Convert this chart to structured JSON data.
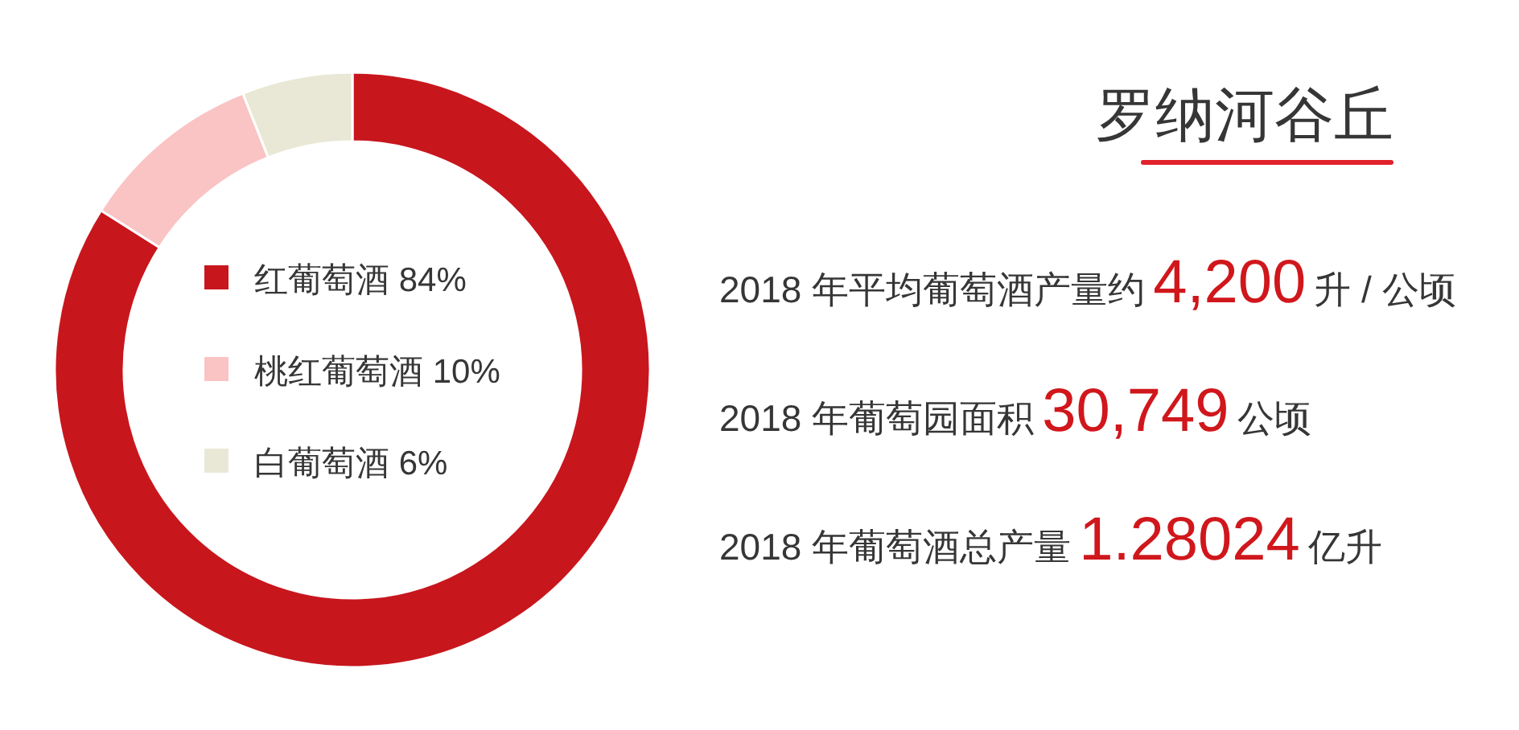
{
  "chart_data": [
    {
      "type": "donut",
      "categories": [
        "红葡萄酒",
        "桃红葡萄酒",
        "白葡萄酒"
      ],
      "values": [
        84,
        10,
        6
      ],
      "value_labels": [
        "84%",
        "10%",
        "6%"
      ],
      "colors": [
        "#c8161d",
        "#fac4c4",
        "#e9e8d6"
      ],
      "legend": "center"
    },
    {
      "type": "other",
      "title": "罗纳河谷丘",
      "annotations": [
        "2018 年平均葡萄酒产量约4,200升 / 公顷",
        "2018 年葡萄园面积30,749公顷",
        "2018 年葡萄酒总产量1.28024亿升"
      ]
    }
  ]
}
